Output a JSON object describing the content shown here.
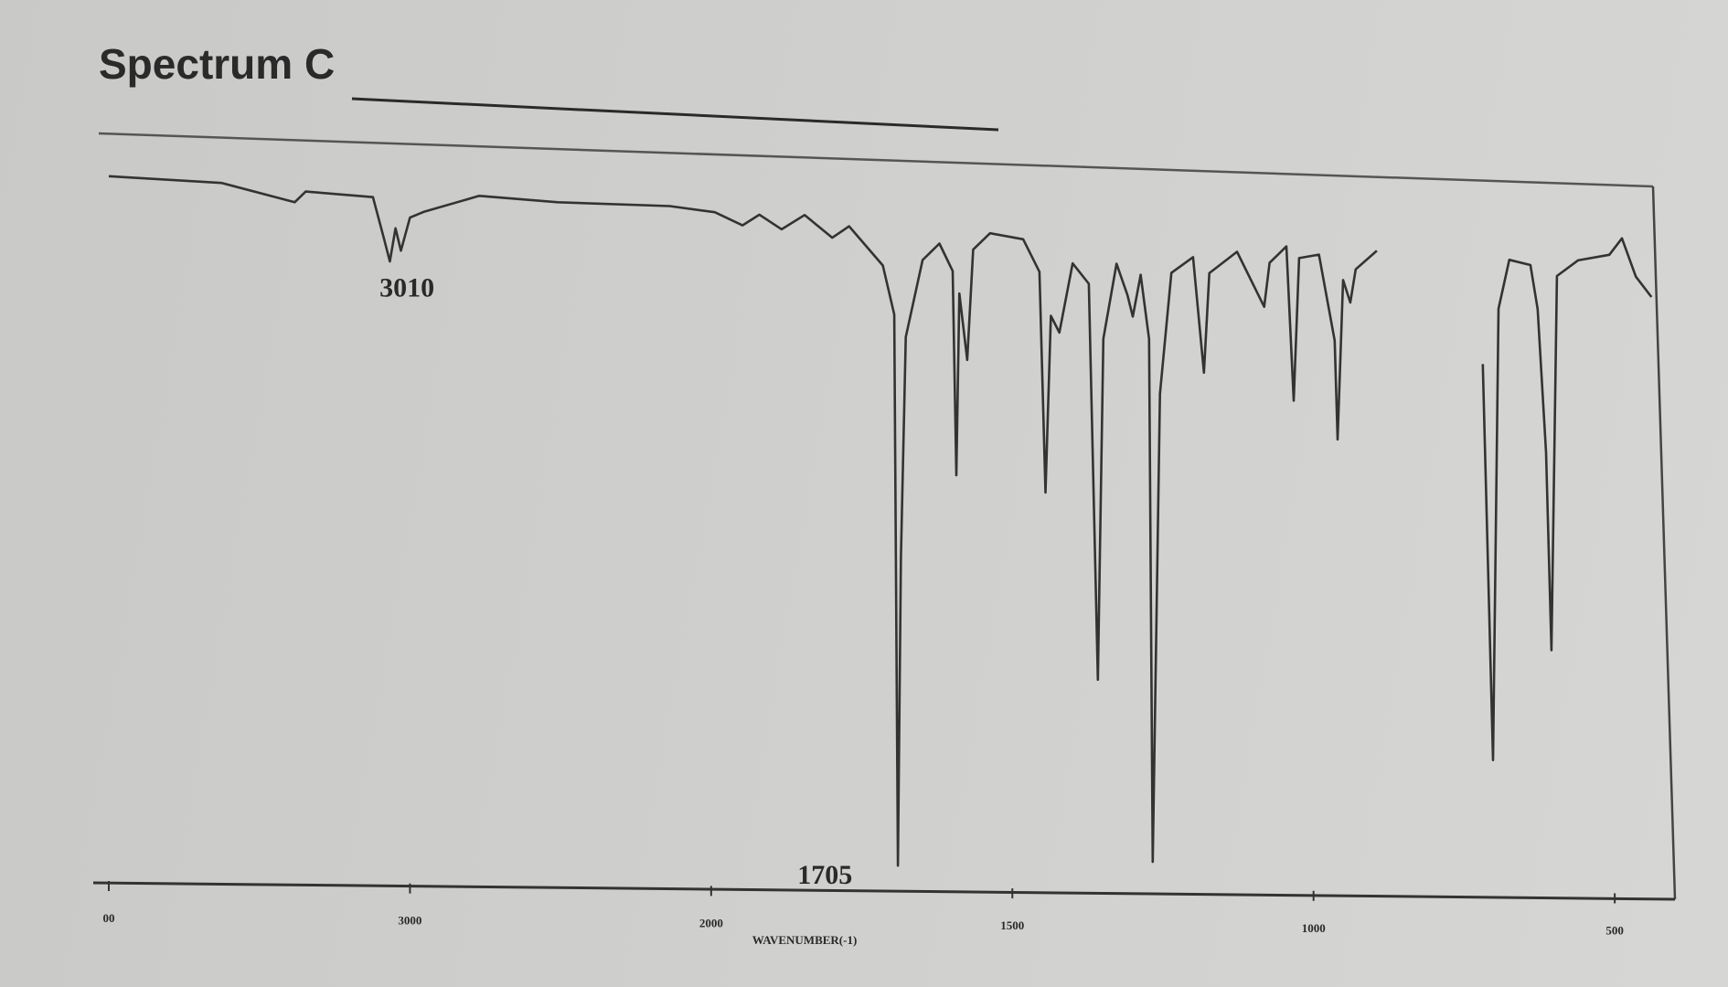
{
  "chart_data": {
    "type": "line",
    "title": "Spectrum C",
    "x_label": "WAVENUMBER(-1)",
    "x": [
      4000,
      3625,
      3383,
      3346,
      3123,
      3086,
      3067,
      3048,
      3030,
      3000,
      2955,
      2770,
      2509,
      2138,
      1994,
      1948,
      1920,
      1883,
      1845,
      1799,
      1771,
      1715,
      1696,
      1690,
      1685,
      1677,
      1649,
      1621,
      1599,
      1593,
      1588,
      1575,
      1565,
      1537,
      1482,
      1455,
      1445,
      1436,
      1422,
      1400,
      1373,
      1358,
      1349,
      1327,
      1309,
      1300,
      1287,
      1273,
      1267,
      1255,
      1236,
      1200,
      1182,
      1173,
      1127,
      1082,
      1073,
      1045,
      1033,
      1024,
      991,
      965,
      960,
      951,
      939,
      930,
      895,
      800,
      719,
      702,
      693,
      675,
      640,
      628,
      614,
      605,
      596,
      561,
      509,
      488,
      465,
      439
    ],
    "values": [
      98.5,
      97.7,
      95.1,
      96.6,
      95.9,
      90.1,
      87.0,
      91.6,
      88.5,
      93.1,
      93.9,
      96.2,
      95.4,
      95.0,
      94.2,
      92.4,
      93.9,
      91.9,
      93.9,
      90.8,
      92.4,
      87.0,
      80.2,
      3.8,
      46.6,
      77.1,
      87.8,
      90.1,
      86.3,
      58.0,
      83.2,
      74.0,
      89.3,
      91.6,
      90.8,
      86.3,
      55.7,
      80.2,
      77.9,
      87.5,
      84.7,
      29.8,
      77.1,
      87.5,
      83.2,
      80.2,
      86.0,
      77.1,
      4.6,
      69.5,
      86.3,
      88.5,
      72.5,
      86.3,
      89.3,
      81.7,
      87.8,
      90.1,
      68.7,
      88.5,
      89.0,
      77.1,
      63.4,
      85.5,
      82.4,
      87.0,
      89.6,
      null,
      74.0,
      19.1,
      81.7,
      88.5,
      87.8,
      81.7,
      61.8,
      34.4,
      86.3,
      88.5,
      89.3,
      91.6,
      86.3,
      83.5
    ],
    "color": "#333333",
    "xlim": [
      4000,
      400
    ],
    "xticks": [
      {
        "value": 4000,
        "label": "00"
      },
      3000,
      2000,
      1500,
      1000,
      500
    ],
    "ylim": [
      0,
      100
    ],
    "annotations": [
      {
        "label": "3010",
        "x": 3010
      },
      {
        "label": "1705",
        "x": 1705
      }
    ]
  }
}
